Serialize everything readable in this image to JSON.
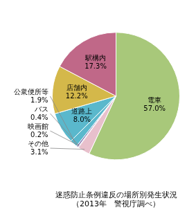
{
  "chart_data": {
    "type": "pie",
    "title": "迷惑防止条例違反の場所別発生状況",
    "subtitle": "（2013年　警視庁調べ）",
    "categories": [
      "電車",
      "その他",
      "映画館",
      "バス",
      "公衆便所等",
      "道路上",
      "店舗内",
      "駅構内"
    ],
    "values": [
      57.0,
      3.1,
      0.2,
      0.4,
      1.9,
      8.0,
      12.2,
      17.3
    ],
    "value_labels": [
      "57.0%",
      "3.1%",
      "0.2%",
      "0.4%",
      "1.9%",
      "8.0%",
      "12.2%",
      "17.3%"
    ],
    "colors": [
      "#a8c87a",
      "#e8c0cc",
      "#9b85b0",
      "#7068a8",
      "#5ab8cc",
      "#5ab8cc",
      "#d4b84a",
      "#c06888"
    ],
    "data_labels": true
  }
}
